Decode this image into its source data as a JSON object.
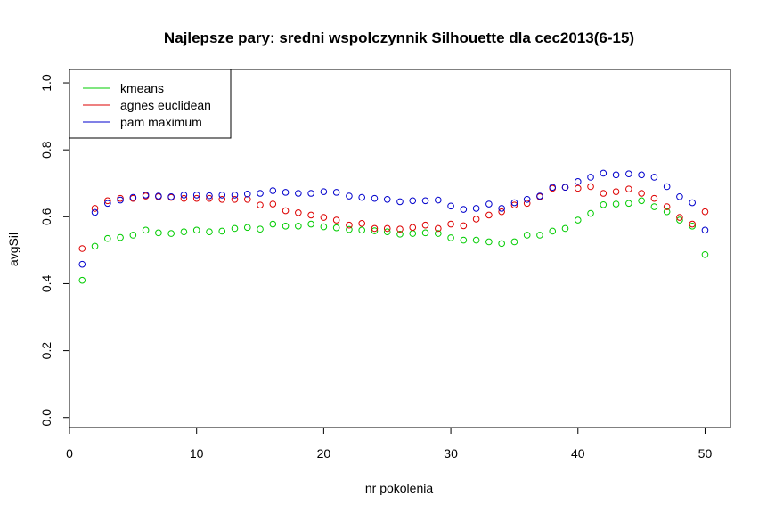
{
  "chart_data": {
    "type": "scatter",
    "title": "Najlepsze pary: sredni wspolczynnik Silhouette dla cec2013(6-15)",
    "xlabel": "nr pokolenia",
    "ylabel": "avgSil",
    "xlim": [
      0,
      52
    ],
    "ylim": [
      -0.03,
      1.04
    ],
    "xticks": [
      "0",
      "10",
      "20",
      "30",
      "40",
      "50"
    ],
    "yticks": [
      "0.0",
      "0.2",
      "0.4",
      "0.6",
      "0.8",
      "1.0"
    ],
    "legend_position": "top-left",
    "grid": false,
    "x": [
      1,
      2,
      3,
      4,
      5,
      6,
      7,
      8,
      9,
      10,
      11,
      12,
      13,
      14,
      15,
      16,
      17,
      18,
      19,
      20,
      21,
      22,
      23,
      24,
      25,
      26,
      27,
      28,
      29,
      30,
      31,
      32,
      33,
      34,
      35,
      36,
      37,
      38,
      39,
      40,
      41,
      42,
      43,
      44,
      45,
      46,
      47,
      48,
      49,
      50
    ],
    "series": [
      {
        "name": "kmeans",
        "color": "#00cc00",
        "values": [
          0.41,
          0.512,
          0.535,
          0.538,
          0.545,
          0.56,
          0.552,
          0.55,
          0.555,
          0.56,
          0.555,
          0.557,
          0.565,
          0.568,
          0.563,
          0.578,
          0.572,
          0.572,
          0.578,
          0.57,
          0.567,
          0.562,
          0.56,
          0.558,
          0.555,
          0.548,
          0.55,
          0.552,
          0.55,
          0.537,
          0.53,
          0.53,
          0.525,
          0.52,
          0.525,
          0.545,
          0.545,
          0.557,
          0.565,
          0.59,
          0.61,
          0.636,
          0.638,
          0.64,
          0.648,
          0.63,
          0.615,
          0.59,
          0.572,
          0.487
        ]
      },
      {
        "name": "agnes euclidean",
        "color": "#dd0000",
        "values": [
          0.505,
          0.625,
          0.648,
          0.655,
          0.655,
          0.662,
          0.66,
          0.658,
          0.655,
          0.655,
          0.655,
          0.652,
          0.652,
          0.652,
          0.635,
          0.638,
          0.618,
          0.612,
          0.605,
          0.598,
          0.59,
          0.575,
          0.58,
          0.565,
          0.565,
          0.563,
          0.568,
          0.575,
          0.565,
          0.578,
          0.573,
          0.593,
          0.605,
          0.615,
          0.635,
          0.64,
          0.66,
          0.685,
          0.688,
          0.685,
          0.69,
          0.67,
          0.675,
          0.683,
          0.67,
          0.655,
          0.63,
          0.598,
          0.578,
          0.615
        ]
      },
      {
        "name": "pam maximum",
        "color": "#0000cc",
        "values": [
          0.458,
          0.613,
          0.64,
          0.65,
          0.658,
          0.665,
          0.662,
          0.66,
          0.665,
          0.665,
          0.663,
          0.665,
          0.665,
          0.668,
          0.67,
          0.678,
          0.673,
          0.67,
          0.67,
          0.675,
          0.673,
          0.662,
          0.658,
          0.655,
          0.652,
          0.645,
          0.648,
          0.648,
          0.65,
          0.632,
          0.622,
          0.625,
          0.638,
          0.625,
          0.642,
          0.652,
          0.662,
          0.688,
          0.688,
          0.705,
          0.718,
          0.73,
          0.725,
          0.728,
          0.725,
          0.718,
          0.69,
          0.66,
          0.642,
          0.56
        ]
      }
    ]
  }
}
